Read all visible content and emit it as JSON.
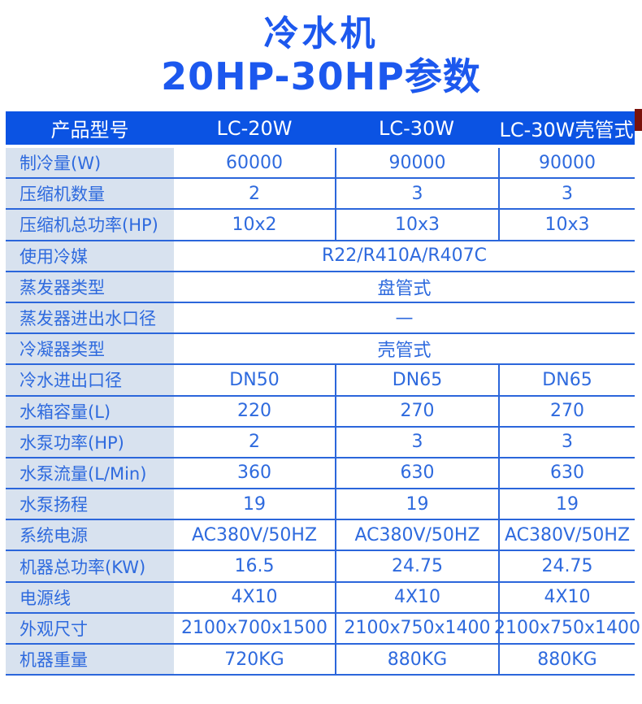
{
  "title": {
    "line1": "冷水机",
    "line2": "20HP-30HP参数"
  },
  "colors": {
    "title_text": "#1c58ee",
    "header_bg": "#0b53e3",
    "cell_text": "#2e6ade",
    "label_bg": "#d8e2ef",
    "divider": "#2b66db",
    "corner_red": "#7a130c"
  },
  "table": {
    "header": {
      "label": "产品型号",
      "columns": [
        "LC-20W",
        "LC-30W",
        "LC-30W壳管式"
      ]
    },
    "rows": [
      {
        "label": "制冷量(W)",
        "values": [
          "60000",
          "90000",
          "90000"
        ]
      },
      {
        "label": "压缩机数量",
        "values": [
          "2",
          "3",
          "3"
        ]
      },
      {
        "label": "压缩机总功率(HP)",
        "values": [
          "10x2",
          "10x3",
          "10x3"
        ]
      },
      {
        "label": "使用冷媒",
        "span": "R22/R410A/R407C"
      },
      {
        "label": "蒸发器类型",
        "span": "盘管式"
      },
      {
        "label": "蒸发器进出水口径",
        "span": "—"
      },
      {
        "label": "冷凝器类型",
        "span": "壳管式"
      },
      {
        "label": "冷水进出口径",
        "values": [
          "DN50",
          "DN65",
          "DN65"
        ]
      },
      {
        "label": "水箱容量(L)",
        "values": [
          "220",
          "270",
          "270"
        ]
      },
      {
        "label": "水泵功率(HP)",
        "values": [
          "2",
          "3",
          "3"
        ]
      },
      {
        "label": "水泵流量(L/Min)",
        "values": [
          "360",
          "630",
          "630"
        ]
      },
      {
        "label": "水泵扬程",
        "values": [
          "19",
          "19",
          "19"
        ]
      },
      {
        "label": "系统电源",
        "values": [
          "AC380V/50HZ",
          "AC380V/50HZ",
          "AC380V/50HZ"
        ]
      },
      {
        "label": "机器总功率(KW)",
        "values": [
          "16.5",
          "24.75",
          "24.75"
        ]
      },
      {
        "label": "电源线",
        "values": [
          "4X10",
          "4X10",
          "4X10"
        ]
      },
      {
        "label": "外观尺寸",
        "values": [
          "2100x700x1500",
          "2100x750x1400",
          "2100x750x1400"
        ]
      },
      {
        "label": "机器重量",
        "values": [
          "720KG",
          "880KG",
          "880KG"
        ]
      }
    ]
  }
}
